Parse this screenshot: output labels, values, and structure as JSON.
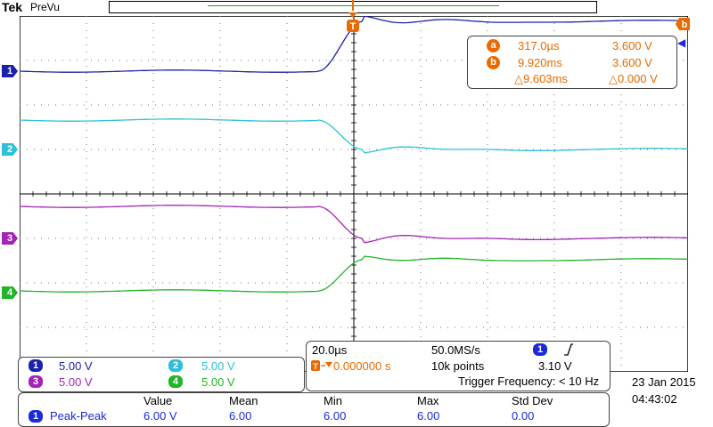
{
  "header": {
    "brand": "Tek",
    "mode": "PreVu"
  },
  "colors": {
    "ch1": "#1c22a8",
    "ch2": "#2ec0d8",
    "ch3": "#a423b8",
    "ch4": "#24b42a",
    "accent": "#e86a00"
  },
  "markers": {
    "trigger": "T",
    "cursor_b": "b",
    "ch1": "1",
    "ch2": "2",
    "ch3": "3",
    "ch4": "4"
  },
  "cursors": {
    "a_label": "a",
    "a_time": "317.0µs",
    "a_volt": "3.600 V",
    "b_label": "b",
    "b_time": "9.920ms",
    "b_volt": "3.600 V",
    "dt": "△9.603ms",
    "dv": "△0.000 V"
  },
  "channels": [
    {
      "num": "1",
      "scale": "5.00 V"
    },
    {
      "num": "2",
      "scale": "5.00 V"
    },
    {
      "num": "3",
      "scale": "5.00 V"
    },
    {
      "num": "4",
      "scale": "5.00 V"
    }
  ],
  "horizontal": {
    "timebase": "20.0µs",
    "sample_rate": "50.0MS/s",
    "trigger_pos": "0.000000 s",
    "record_length": "10k points",
    "trig_channel": "1",
    "trig_slope_icon": "rising-edge-icon",
    "trig_level": "3.10 V",
    "trigger_frequency": "Trigger Frequency: < 10 Hz"
  },
  "measurement": {
    "headers": [
      "Value",
      "Mean",
      "Min",
      "Max",
      "Std Dev"
    ],
    "channel": "1",
    "name": "Peak-Peak",
    "values": [
      "6.00 V",
      "6.00",
      "6.00",
      "6.00",
      "0.00"
    ]
  },
  "datetime": {
    "date": "23 Jan  2015",
    "time": "04:43:02"
  }
}
